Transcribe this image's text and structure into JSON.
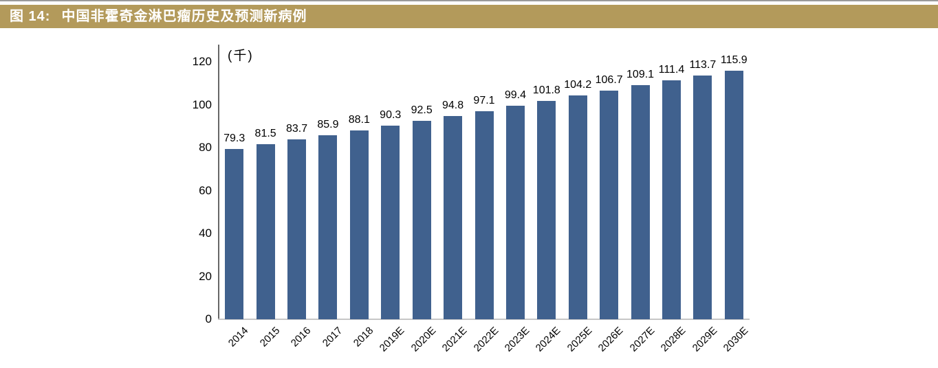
{
  "header": {
    "figure_label": "图 14:",
    "title": "中国非霍奇金淋巴瘤历史及预测新病例",
    "banner_color": "#B39A5B",
    "text_color": "#FFFFFF"
  },
  "chart_data": {
    "type": "bar",
    "title": "中国非霍奇金淋巴瘤历史及预测新病例",
    "categories": [
      "2014",
      "2015",
      "2016",
      "2017",
      "2018",
      "2019E",
      "2020E",
      "2021E",
      "2022E",
      "2023E",
      "2024E",
      "2025E",
      "2026E",
      "2027E",
      "2028E",
      "2029E",
      "2030E"
    ],
    "values": [
      79.3,
      81.5,
      83.7,
      85.9,
      88.1,
      90.3,
      92.5,
      94.8,
      97.1,
      99.4,
      101.8,
      104.2,
      106.7,
      109.1,
      111.4,
      113.7,
      115.9
    ],
    "xlabel": "",
    "ylabel": "(千)",
    "ylim": [
      0,
      120
    ],
    "yticks": [
      0,
      20,
      40,
      60,
      80,
      100,
      120
    ],
    "grid": false,
    "legend": "none",
    "value_labels": true,
    "bar_color": "#40618E",
    "axis_line_color": "#666666",
    "baseline_color": "#C6C6C6"
  }
}
